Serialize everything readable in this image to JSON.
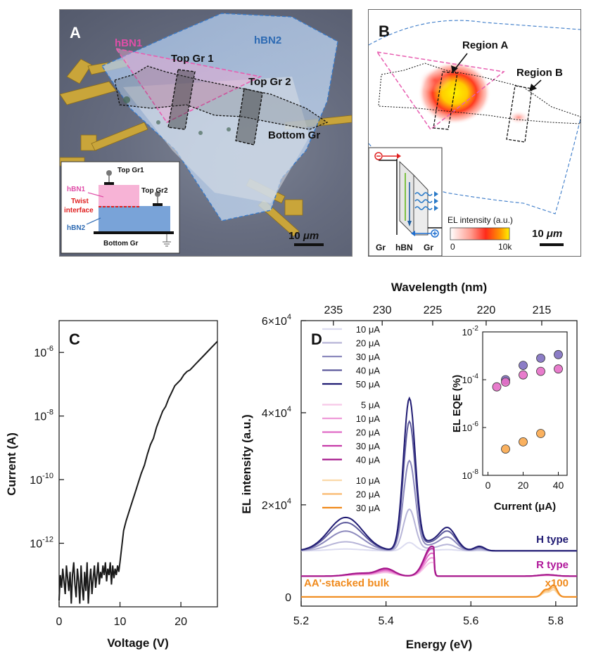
{
  "panel_a": {
    "letter": "A",
    "labels": {
      "hbn1": "hBN1",
      "hbn2": "hBN2",
      "top_gr1": "Top Gr 1",
      "top_gr2": "Top Gr 2",
      "bottom_gr": "Bottom Gr"
    },
    "scalebar": {
      "value": "10",
      "unit": "μm"
    },
    "inset": {
      "top_gr1": "Top Gr1",
      "top_gr2": "Top Gr2",
      "hbn1": "hBN1",
      "twist_line1": "Twist",
      "twist_line2": "interface",
      "hbn2": "hBN2",
      "bottom_gr": "Bottom Gr"
    }
  },
  "panel_b": {
    "letter": "B",
    "labels": {
      "region_a": "Region A",
      "region_b": "Region B"
    },
    "colorbar": {
      "title": "EL intensity (a.u.)",
      "min": "0",
      "max": "10k"
    },
    "scalebar": {
      "value": "10",
      "unit": "μm"
    },
    "inset": {
      "gr_left": "Gr",
      "hbn": "hBN",
      "gr_right": "Gr"
    }
  },
  "chart_data": [
    {
      "panel": "C",
      "type": "line",
      "title": "",
      "xlabel": "Voltage (V)",
      "ylabel": "Current (A)",
      "xlim": [
        0,
        26
      ],
      "ylim_log10": [
        -14,
        -5
      ],
      "yscale": "log",
      "xticks": [
        0,
        10,
        20
      ],
      "yticks": [
        {
          "exp": -12,
          "label": "-12"
        },
        {
          "exp": -10,
          "label": "-10"
        },
        {
          "exp": -8,
          "label": "-8"
        },
        {
          "exp": -6,
          "label": "-6"
        }
      ],
      "ytick_base": "10",
      "series": [
        {
          "name": "I-V",
          "color": "#1a1a1a",
          "x": [
            0.0,
            0.2,
            0.4,
            0.6,
            0.8,
            1.0,
            1.2,
            1.4,
            1.6,
            1.8,
            2.0,
            2.2,
            2.4,
            2.6,
            2.8,
            3.0,
            3.2,
            3.4,
            3.6,
            3.8,
            4.0,
            4.2,
            4.4,
            4.6,
            4.8,
            5.0,
            5.2,
            5.4,
            5.6,
            5.8,
            6.0,
            6.2,
            6.4,
            6.6,
            6.8,
            7.0,
            7.2,
            7.4,
            7.6,
            7.8,
            8.0,
            8.2,
            8.4,
            8.6,
            8.8,
            9.0,
            9.2,
            9.4,
            9.6,
            9.8,
            10.0,
            10.3,
            10.6,
            11.0,
            11.5,
            12.0,
            12.5,
            13.0,
            13.5,
            14.0,
            14.5,
            15.0,
            15.5,
            16.0,
            16.5,
            17.0,
            17.5,
            18.0,
            18.5,
            19.0,
            19.5,
            20.0,
            20.5,
            21.0,
            21.5,
            22.0,
            22.5,
            23.0,
            23.5,
            24.0,
            24.5,
            25.0,
            25.5,
            26.0
          ],
          "log10_y": [
            -13.8,
            -13.0,
            -13.4,
            -12.8,
            -13.2,
            -13.6,
            -12.7,
            -13.1,
            -13.5,
            -12.9,
            -13.9,
            -13.0,
            -12.6,
            -13.3,
            -13.7,
            -12.8,
            -13.2,
            -13.9,
            -12.7,
            -13.4,
            -13.8,
            -12.9,
            -13.5,
            -12.6,
            -13.9,
            -13.2,
            -12.8,
            -13.6,
            -13.1,
            -12.7,
            -13.4,
            -13.0,
            -12.6,
            -13.3,
            -12.9,
            -13.1,
            -12.7,
            -13.0,
            -12.6,
            -13.2,
            -12.8,
            -13.0,
            -12.6,
            -13.3,
            -12.7,
            -13.1,
            -12.8,
            -13.0,
            -12.7,
            -12.9,
            -12.6,
            -12.1,
            -11.6,
            -11.3,
            -11.0,
            -10.7,
            -10.4,
            -10.1,
            -9.8,
            -9.55,
            -9.2,
            -8.9,
            -8.7,
            -8.35,
            -8.1,
            -7.85,
            -7.7,
            -7.45,
            -7.25,
            -7.05,
            -6.95,
            -6.85,
            -6.7,
            -6.6,
            -6.55,
            -6.45,
            -6.35,
            -6.25,
            -6.15,
            -6.05,
            -5.95,
            -5.85,
            -5.75,
            -5.65
          ]
        }
      ]
    },
    {
      "panel": "D",
      "type": "line",
      "title": "",
      "xlabel": "Energy (eV)",
      "ylabel": "EL intensity (a.u.)",
      "top_xlabel": "Wavelength (nm)",
      "xlim": [
        5.2,
        5.85
      ],
      "ylim": [
        -2000,
        60000
      ],
      "xticks": [
        "5.2",
        "5.4",
        "5.6",
        "5.8"
      ],
      "yticks": [
        {
          "value": 0,
          "label": "0"
        },
        {
          "value": 20000,
          "label": "2×10",
          "exp": "4"
        },
        {
          "value": 40000,
          "label": "4×10",
          "exp": "4"
        },
        {
          "value": 60000,
          "label": "6×10",
          "exp": "4"
        }
      ],
      "top_ticks": [
        {
          "energy": 5.276,
          "label": "235"
        },
        {
          "energy": 5.391,
          "label": "230"
        },
        {
          "energy": 5.51,
          "label": "225"
        },
        {
          "energy": 5.636,
          "label": "220"
        },
        {
          "energy": 5.767,
          "label": "215"
        }
      ],
      "type_labels": {
        "h": "H type",
        "r": "R type",
        "aa": "AA'-stacked bulk",
        "x100": "x100"
      },
      "legend_groups": [
        {
          "group": "H type",
          "items": [
            {
              "label": "10 μA",
              "color": "#dcdcf0"
            },
            {
              "label": "20 μA",
              "color": "#b7b5d8"
            },
            {
              "label": "30 μA",
              "color": "#8c89bd"
            },
            {
              "label": "40 μA",
              "color": "#5d5a9c"
            },
            {
              "label": "50 μA",
              "color": "#1f1a72"
            }
          ]
        },
        {
          "group": "R type",
          "items": [
            {
              "label": "5 μA",
              "color": "#f6c8e8"
            },
            {
              "label": "10 μA",
              "color": "#ee9ad8"
            },
            {
              "label": "20 μA",
              "color": "#e06cc6"
            },
            {
              "label": "30 μA",
              "color": "#c63aa8"
            },
            {
              "label": "40 μA",
              "color": "#a4168a"
            }
          ]
        },
        {
          "group": "AA'-stacked bulk",
          "items": [
            {
              "label": "10 μA",
              "color": "#fbd9a8"
            },
            {
              "label": "20 μA",
              "color": "#f9b86b"
            },
            {
              "label": "30 μA",
              "color": "#f08a1c"
            }
          ]
        }
      ],
      "series": [
        {
          "name": "H 10 μA",
          "color": "#dcdcf0",
          "baseline": 10000,
          "peak": 1800
        },
        {
          "name": "H 20 μA",
          "color": "#b7b5d8",
          "baseline": 10000,
          "peak": 9000
        },
        {
          "name": "H 30 μA",
          "color": "#8c89bd",
          "baseline": 10000,
          "peak": 19500
        },
        {
          "name": "H 40 μA",
          "color": "#5d5a9c",
          "baseline": 10000,
          "peak": 28000
        },
        {
          "name": "H 50 μA",
          "color": "#1f1a72",
          "baseline": 10000,
          "peak": 33000
        },
        {
          "name": "R 5 μA",
          "color": "#f6c8e8",
          "baseline": 4500,
          "peak": 3000
        },
        {
          "name": "R 10 μA",
          "color": "#ee9ad8",
          "baseline": 4500,
          "peak": 4000
        },
        {
          "name": "R 20 μA",
          "color": "#e06cc6",
          "baseline": 4500,
          "peak": 5000
        },
        {
          "name": "R 30 μA",
          "color": "#c63aa8",
          "baseline": 4500,
          "peak": 6000
        },
        {
          "name": "R 40 μA",
          "color": "#a4168a",
          "baseline": 4500,
          "peak": 6500
        },
        {
          "name": "AA 10 μA",
          "color": "#fbd9a8",
          "baseline": 0,
          "peak": 1500
        },
        {
          "name": "AA 20 μA",
          "color": "#f9b86b",
          "baseline": 0,
          "peak": 2000
        },
        {
          "name": "AA 30 μA",
          "color": "#f08a1c",
          "baseline": 0,
          "peak": 2500
        }
      ]
    },
    {
      "panel": "D-inset",
      "type": "scatter",
      "xlabel": "Current (μA)",
      "ylabel": "EL EQE (%)",
      "xlim": [
        -3,
        45
      ],
      "ylim_log10": [
        -8,
        -2
      ],
      "yscale": "log",
      "xticks": [
        0,
        20,
        40
      ],
      "yticks": [
        {
          "exp": -8,
          "label": "-8"
        },
        {
          "exp": -6,
          "label": "-6"
        },
        {
          "exp": -4,
          "label": "-4"
        },
        {
          "exp": -2,
          "label": "-2"
        }
      ],
      "ytick_base": "10",
      "series": [
        {
          "name": "H type",
          "color": "#7f6fc0",
          "x": [
            10,
            20,
            30,
            40
          ],
          "log10_y": [
            -4.0,
            -3.4,
            -3.1,
            -2.95
          ]
        },
        {
          "name": "R type",
          "color": "#e56ec6",
          "x": [
            5,
            10,
            20,
            30,
            40
          ],
          "log10_y": [
            -4.3,
            -4.1,
            -3.8,
            -3.65,
            -3.55
          ]
        },
        {
          "name": "AA'-stacked bulk",
          "color": "#f9a94e",
          "x": [
            10,
            20,
            30
          ],
          "log10_y": [
            -6.9,
            -6.6,
            -6.25
          ]
        }
      ]
    }
  ]
}
